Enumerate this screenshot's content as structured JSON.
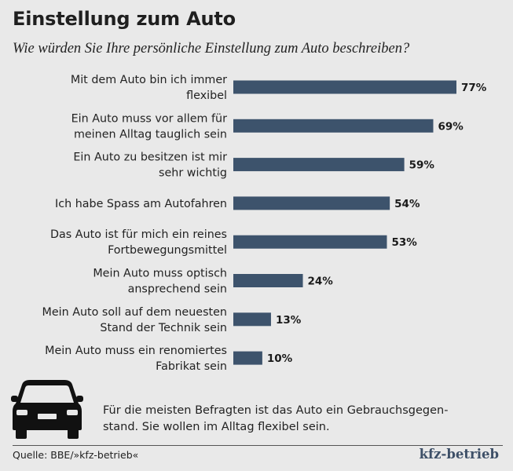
{
  "title": "Einstellung zum Auto",
  "subtitle": "Wie würden Sie Ihre persönliche Einstellung zum Auto beschreiben?",
  "note_lines": [
    "Für die meisten Befragten ist das Auto ein Gebrauchsgegen-",
    "stand. Sie wollen im Alltag flexibel sein."
  ],
  "source": "Quelle: BBE/»kfz-betrieb«",
  "brand": "kfz-betrieb",
  "colors": {
    "bar": "#3d536c",
    "background": "#e9e9e9"
  },
  "icons": {
    "car": "car-front-icon"
  },
  "chart_data": {
    "type": "bar",
    "orientation": "horizontal",
    "title": "Einstellung zum Auto",
    "subtitle": "Wie würden Sie Ihre persönliche Einstellung zum Auto beschreiben?",
    "xlabel": "",
    "ylabel": "",
    "xlim": [
      0,
      100
    ],
    "grid": false,
    "unit": "%",
    "categories": [
      [
        "Mit dem Auto bin ich immer",
        "flexibel"
      ],
      [
        "Ein Auto muss vor allem für",
        "meinen Alltag tauglich sein"
      ],
      [
        "Ein Auto zu besitzen ist mir",
        "sehr wichtig"
      ],
      [
        "Ich habe Spass am Autofahren"
      ],
      [
        "Das Auto ist für mich ein reines",
        "Fortbewegungsmittel"
      ],
      [
        "Mein Auto muss optisch",
        "ansprechend sein"
      ],
      [
        "Mein Auto soll auf dem neuesten",
        "Stand der Technik sein"
      ],
      [
        "Mein Auto muss ein renomiertes",
        "Fabrikat sein"
      ]
    ],
    "values": [
      77,
      69,
      59,
      54,
      53,
      24,
      13,
      10
    ],
    "value_labels": [
      "77%",
      "69%",
      "59%",
      "54%",
      "53%",
      "24%",
      "13%",
      "10%"
    ]
  }
}
